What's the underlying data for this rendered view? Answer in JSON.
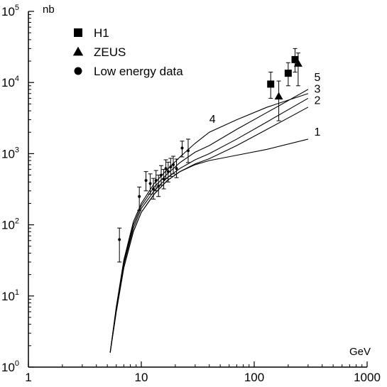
{
  "chart_data": {
    "type": "scatter",
    "title": "",
    "xlabel": "GeV",
    "ylabel": "nb",
    "x_scale": "log",
    "y_scale": "log",
    "xlim": [
      1,
      1000
    ],
    "ylim": [
      1,
      100000
    ],
    "x_ticks": [
      {
        "value": 1,
        "label": "1"
      },
      {
        "value": 10,
        "label": "10"
      },
      {
        "value": 100,
        "label": "100"
      },
      {
        "value": 1000,
        "label": "1000"
      }
    ],
    "y_ticks": [
      {
        "value": 1,
        "base": "10",
        "exp": "0"
      },
      {
        "value": 10,
        "base": "10",
        "exp": "1"
      },
      {
        "value": 100,
        "base": "10",
        "exp": "2"
      },
      {
        "value": 1000,
        "base": "10",
        "exp": "3"
      },
      {
        "value": 10000,
        "base": "10",
        "exp": "4"
      },
      {
        "value": 100000,
        "base": "10",
        "exp": "5"
      }
    ],
    "grid": false,
    "legend_position": "top-left",
    "legend": [
      {
        "label": "H1",
        "marker": "square"
      },
      {
        "label": "ZEUS",
        "marker": "triangle"
      },
      {
        "label": "Low energy data",
        "marker": "circle"
      }
    ],
    "series": [
      {
        "name": "H1",
        "marker": "square",
        "points": [
          {
            "x": 140,
            "y": 9500,
            "ylo": 6000,
            "yhi": 14000
          },
          {
            "x": 200,
            "y": 13500,
            "ylo": 9000,
            "yhi": 19000
          },
          {
            "x": 230,
            "y": 21000,
            "ylo": 14000,
            "yhi": 30000
          }
        ]
      },
      {
        "name": "ZEUS",
        "marker": "triangle",
        "points": [
          {
            "x": 165,
            "y": 6400,
            "ylo": 2900,
            "yhi": 10500
          },
          {
            "x": 245,
            "y": 18500,
            "ylo": 9000,
            "yhi": 26000
          }
        ]
      },
      {
        "name": "Low energy data",
        "marker": "circle",
        "points": [
          {
            "x": 6.4,
            "y": 62,
            "ylo": 30,
            "yhi": 90
          },
          {
            "x": 9.6,
            "y": 250,
            "ylo": 160,
            "yhi": 340
          },
          {
            "x": 11,
            "y": 420,
            "ylo": 300,
            "yhi": 560
          },
          {
            "x": 12,
            "y": 380,
            "ylo": 270,
            "yhi": 520
          },
          {
            "x": 12.8,
            "y": 320,
            "ylo": 230,
            "yhi": 450
          },
          {
            "x": 13.5,
            "y": 420,
            "ylo": 300,
            "yhi": 580
          },
          {
            "x": 14.2,
            "y": 350,
            "ylo": 250,
            "yhi": 500
          },
          {
            "x": 15,
            "y": 500,
            "ylo": 360,
            "yhi": 680
          },
          {
            "x": 15.8,
            "y": 440,
            "ylo": 320,
            "yhi": 600
          },
          {
            "x": 16.5,
            "y": 620,
            "ylo": 450,
            "yhi": 820
          },
          {
            "x": 17.3,
            "y": 560,
            "ylo": 400,
            "yhi": 760
          },
          {
            "x": 18.2,
            "y": 650,
            "ylo": 480,
            "yhi": 860
          },
          {
            "x": 19.2,
            "y": 700,
            "ylo": 520,
            "yhi": 920
          },
          {
            "x": 20.5,
            "y": 620,
            "ylo": 460,
            "yhi": 840
          },
          {
            "x": 23,
            "y": 1200,
            "ylo": 900,
            "yhi": 1500
          },
          {
            "x": 26,
            "y": 1100,
            "ylo": 750,
            "yhi": 1600
          }
        ]
      }
    ],
    "curves": [
      {
        "label": "1",
        "points": [
          [
            5.3,
            1.6
          ],
          [
            6,
            6
          ],
          [
            7,
            25
          ],
          [
            8.5,
            80
          ],
          [
            10,
            150
          ],
          [
            13,
            270
          ],
          [
            17,
            420
          ],
          [
            22,
            560
          ],
          [
            30,
            700
          ],
          [
            40,
            800
          ],
          [
            70,
            950
          ],
          [
            130,
            1150
          ],
          [
            300,
            1600
          ]
        ]
      },
      {
        "label": "2",
        "points": [
          [
            5.3,
            1.6
          ],
          [
            6,
            6
          ],
          [
            7,
            25
          ],
          [
            8.5,
            80
          ],
          [
            10,
            150
          ],
          [
            13,
            270
          ],
          [
            17,
            420
          ],
          [
            22,
            560
          ],
          [
            30,
            720
          ],
          [
            40,
            850
          ],
          [
            70,
            1300
          ],
          [
            130,
            2200
          ],
          [
            300,
            4500
          ]
        ]
      },
      {
        "label": "3",
        "points": [
          [
            5.3,
            1.6
          ],
          [
            6,
            6.5
          ],
          [
            7,
            28
          ],
          [
            8.5,
            90
          ],
          [
            10,
            170
          ],
          [
            13,
            300
          ],
          [
            17,
            460
          ],
          [
            22,
            620
          ],
          [
            30,
            820
          ],
          [
            40,
            1000
          ],
          [
            70,
            1600
          ],
          [
            130,
            2800
          ],
          [
            300,
            6000
          ]
        ]
      },
      {
        "label": "4",
        "points": [
          [
            5.3,
            1.6
          ],
          [
            6,
            7
          ],
          [
            7,
            32
          ],
          [
            8.5,
            110
          ],
          [
            10,
            200
          ],
          [
            13,
            380
          ],
          [
            17,
            600
          ],
          [
            22,
            900
          ],
          [
            30,
            1400
          ],
          [
            40,
            2000
          ],
          [
            70,
            3000
          ],
          [
            130,
            4500
          ],
          [
            300,
            7000
          ]
        ]
      },
      {
        "label": "5",
        "points": [
          [
            5.3,
            1.6
          ],
          [
            6,
            6.8
          ],
          [
            7,
            30
          ],
          [
            8.5,
            100
          ],
          [
            10,
            185
          ],
          [
            13,
            340
          ],
          [
            17,
            520
          ],
          [
            22,
            750
          ],
          [
            30,
            1050
          ],
          [
            40,
            1300
          ],
          [
            70,
            2200
          ],
          [
            130,
            3800
          ],
          [
            300,
            8000
          ]
        ]
      }
    ],
    "curve_labels": [
      {
        "label": "4",
        "x": 40,
        "y": 2700
      },
      {
        "label": "5",
        "x": 340,
        "y": 10500
      },
      {
        "label": "3",
        "x": 340,
        "y": 7200
      },
      {
        "label": "2",
        "x": 340,
        "y": 5000
      },
      {
        "label": "1",
        "x": 340,
        "y": 1800
      }
    ]
  }
}
